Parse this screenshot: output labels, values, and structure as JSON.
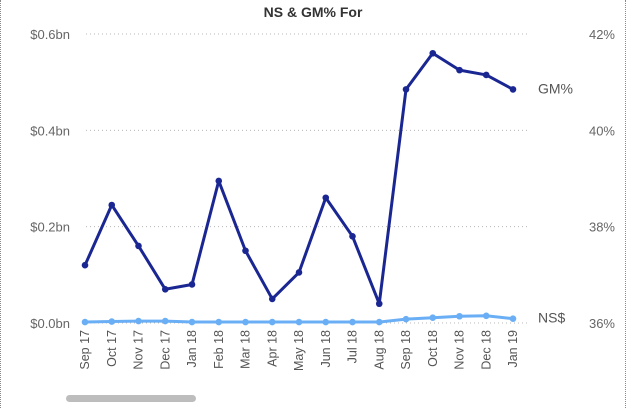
{
  "chart_data": {
    "type": "line",
    "title": "NS & GM% For",
    "categories": [
      "Sep 17",
      "Oct 17",
      "Nov 17",
      "Dec 17",
      "Jan 18",
      "Feb 18",
      "Mar 18",
      "Apr 18",
      "May 18",
      "Jun 18",
      "Jul 18",
      "Aug 18",
      "Sep 18",
      "Oct 18",
      "Nov 18",
      "Dec 18",
      "Jan 19"
    ],
    "y_left": {
      "ticks": [
        "$0.0bn",
        "$0.2bn",
        "$0.4bn",
        "$0.6bn"
      ],
      "tick_values": [
        0,
        0.2,
        0.4,
        0.6
      ],
      "ylim": [
        0,
        0.6
      ]
    },
    "y_right": {
      "ticks": [
        "36%",
        "38%",
        "40%",
        "42%"
      ],
      "tick_values": [
        36,
        38,
        40,
        42
      ],
      "ylim": [
        36,
        42
      ]
    },
    "series": [
      {
        "name": "GM%",
        "axis": "right",
        "color": "#1a2793",
        "values": [
          37.2,
          38.45,
          37.6,
          36.7,
          36.8,
          38.95,
          37.5,
          36.5,
          37.05,
          38.6,
          37.8,
          36.4,
          40.85,
          41.6,
          41.25,
          41.15,
          40.85
        ]
      },
      {
        "name": "NS$",
        "axis": "left",
        "color": "#6aaff5",
        "values": [
          0.002,
          0.003,
          0.004,
          0.004,
          0.002,
          0.002,
          0.002,
          0.002,
          0.002,
          0.002,
          0.002,
          0.002,
          0.008,
          0.011,
          0.014,
          0.015,
          0.009
        ]
      }
    ],
    "grid": true,
    "legend": "inline-right"
  }
}
